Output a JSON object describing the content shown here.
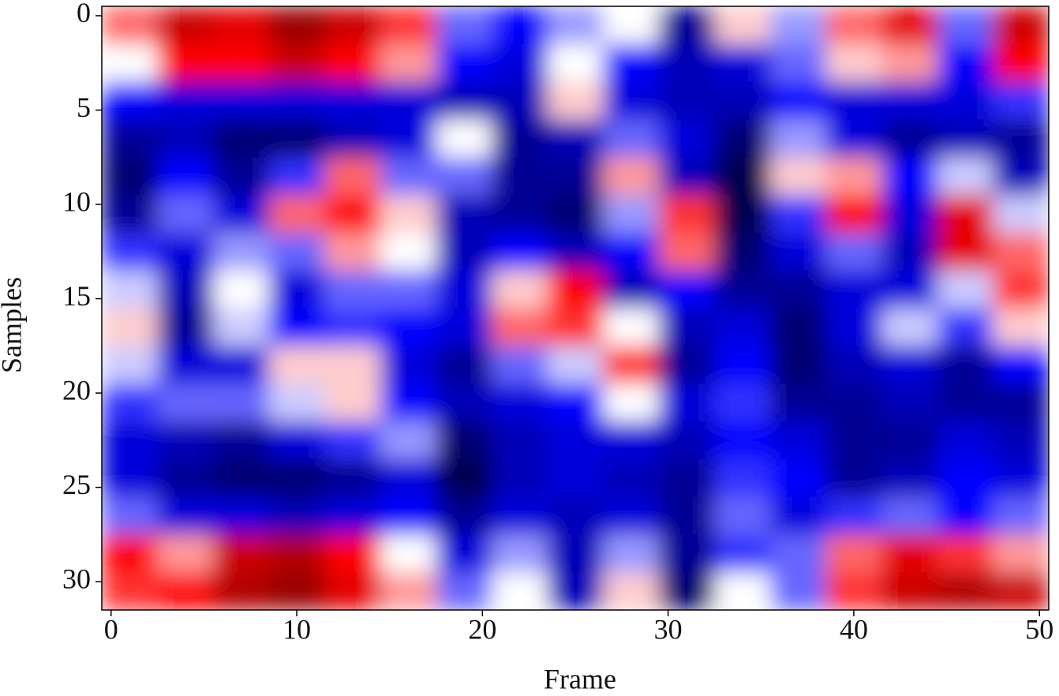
{
  "chart_data": {
    "type": "heatmap",
    "xlabel": "Frame",
    "ylabel": "Samples",
    "x": [
      1,
      4,
      7,
      10,
      13,
      16,
      19,
      22,
      25,
      28,
      31,
      34,
      37,
      40,
      43,
      46,
      49
    ],
    "y": [
      0.5,
      2.5,
      4.5,
      6.5,
      8.5,
      10.5,
      12.5,
      14.5,
      16.5,
      18.5,
      20.5,
      22.5,
      24.5,
      26.5,
      28.5,
      30.5
    ],
    "z": [
      [
        0.3,
        0.7,
        0.6,
        0.9,
        0.7,
        0.4,
        -0.3,
        -0.5,
        -0.2,
        0.0,
        -0.8,
        0.1,
        -0.2,
        0.3,
        0.6,
        -0.3,
        0.7
      ],
      [
        0.0,
        0.5,
        0.5,
        0.7,
        0.5,
        0.2,
        -0.5,
        -0.6,
        0.0,
        -0.5,
        -0.7,
        -0.6,
        -0.3,
        0.1,
        0.2,
        -0.5,
        0.5
      ],
      [
        -0.5,
        -0.6,
        -0.6,
        -0.6,
        -0.6,
        -0.6,
        -0.7,
        -0.7,
        0.1,
        -0.6,
        -0.7,
        -0.7,
        -0.5,
        -0.6,
        -0.6,
        -0.6,
        -0.4
      ],
      [
        -0.8,
        -0.7,
        -0.9,
        -0.9,
        -0.7,
        -0.6,
        0.0,
        -0.8,
        -0.7,
        -0.3,
        -0.6,
        -0.9,
        -0.2,
        -0.6,
        -0.8,
        -0.7,
        -0.8
      ],
      [
        -0.9,
        -0.5,
        -0.8,
        -0.4,
        0.3,
        -0.3,
        -0.3,
        -0.8,
        -0.8,
        0.2,
        -0.7,
        -1.0,
        0.1,
        0.2,
        -0.5,
        -0.1,
        -0.7
      ],
      [
        -0.8,
        -0.3,
        -0.6,
        0.3,
        0.5,
        0.1,
        -0.7,
        -0.8,
        -0.9,
        -0.2,
        0.4,
        -1.0,
        -0.4,
        0.5,
        -0.6,
        0.6,
        -0.1
      ],
      [
        -0.4,
        -0.6,
        -0.2,
        -0.3,
        0.2,
        0.0,
        -0.7,
        -0.5,
        -0.7,
        -0.5,
        0.3,
        -0.9,
        -0.6,
        -0.3,
        -0.7,
        0.6,
        0.3
      ],
      [
        -0.1,
        -0.7,
        0.0,
        -0.6,
        -0.3,
        -0.3,
        -0.6,
        0.1,
        0.5,
        -0.7,
        -0.5,
        -0.8,
        -0.8,
        -0.6,
        -0.6,
        -0.1,
        0.4
      ],
      [
        0.1,
        -0.8,
        -0.1,
        -0.5,
        -0.4,
        -0.5,
        -0.6,
        0.3,
        0.4,
        0.0,
        -0.7,
        -0.6,
        -0.9,
        -0.6,
        -0.1,
        -0.4,
        0.1
      ],
      [
        -0.1,
        -0.6,
        -0.6,
        0.1,
        0.1,
        -0.6,
        -0.8,
        -0.3,
        -0.1,
        0.4,
        -0.8,
        -0.5,
        -0.9,
        -0.7,
        -0.6,
        -0.8,
        -0.5
      ],
      [
        -0.4,
        -0.3,
        -0.3,
        -0.1,
        0.1,
        -0.5,
        -0.7,
        -0.6,
        -0.5,
        0.0,
        -0.6,
        -0.4,
        -0.8,
        -0.8,
        -0.7,
        -0.8,
        -0.8
      ],
      [
        -0.6,
        -0.7,
        -0.8,
        -0.6,
        -0.4,
        -0.2,
        -0.9,
        -0.7,
        -0.6,
        -0.6,
        -0.7,
        -0.5,
        -0.6,
        -0.8,
        -0.8,
        -0.6,
        -0.7
      ],
      [
        -0.6,
        -0.8,
        -0.9,
        -0.9,
        -0.8,
        -0.6,
        -1.0,
        -0.7,
        -0.6,
        -0.7,
        -0.8,
        -0.4,
        -0.5,
        -0.8,
        -0.7,
        -0.5,
        -0.6
      ],
      [
        -0.3,
        -0.6,
        -0.6,
        -0.7,
        -0.6,
        -0.5,
        -0.8,
        -0.6,
        -0.7,
        -0.6,
        -0.8,
        -0.3,
        -0.6,
        -0.4,
        -0.3,
        -0.5,
        -0.3
      ],
      [
        0.5,
        0.2,
        0.7,
        0.8,
        0.5,
        0.0,
        -0.6,
        -0.2,
        -0.7,
        -0.2,
        -0.8,
        -0.4,
        -0.3,
        0.3,
        0.6,
        0.4,
        0.2
      ],
      [
        0.4,
        0.5,
        0.8,
        0.9,
        0.6,
        0.2,
        -0.3,
        0.0,
        -0.7,
        0.1,
        -0.9,
        0.0,
        -0.3,
        0.4,
        0.7,
        0.8,
        0.7
      ]
    ],
    "zlim": [
      -1,
      1
    ],
    "colors": [
      "#00004d",
      "#0000ff",
      "#ffffff",
      "#ff0000",
      "#800000"
    ],
    "xlim": [
      -0.5,
      50.5
    ],
    "ylim": [
      31.5,
      -0.5
    ],
    "xticks": [
      0,
      10,
      20,
      30,
      40,
      50
    ],
    "yticks": [
      0,
      5,
      10,
      15,
      20,
      25,
      30
    ]
  }
}
